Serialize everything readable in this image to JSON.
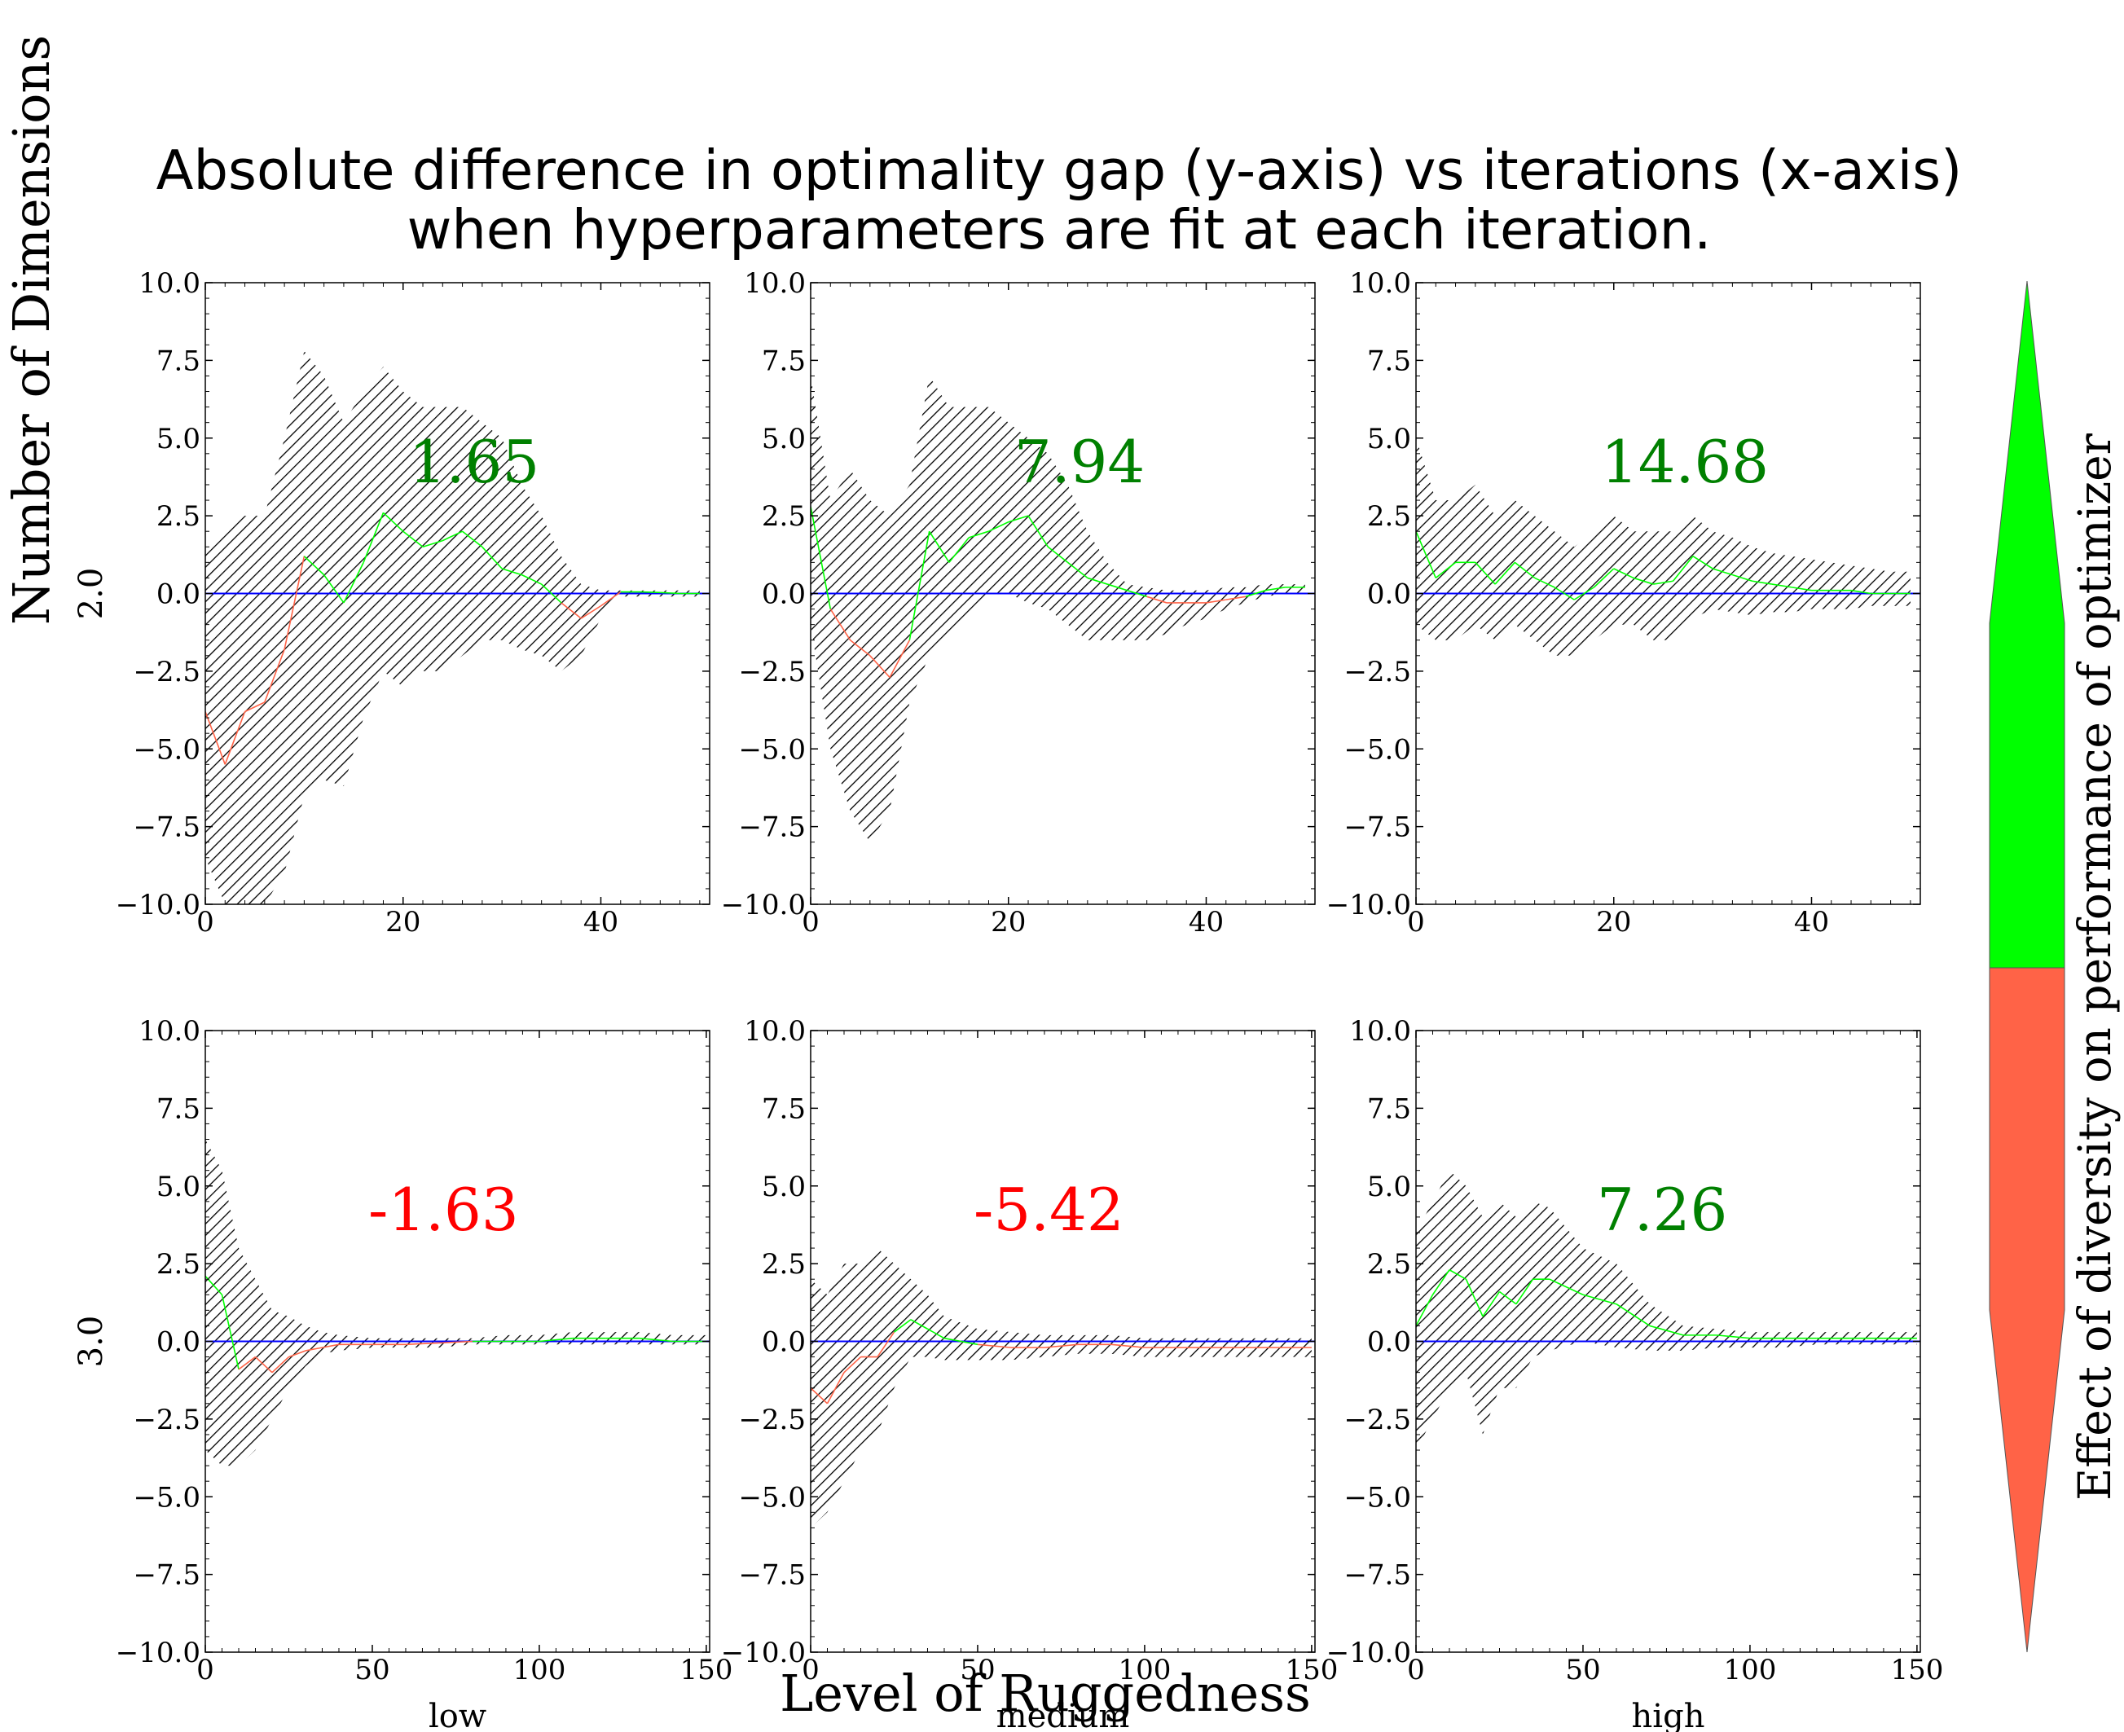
{
  "title_lines": [
    "Absolute difference in optimality gap (y-axis) vs iterations (x-axis)",
    "when hyperparameters are fit at each iteration."
  ],
  "ylabel": "Number of Dimensions",
  "xlabel": "Level of Ruggedness",
  "colorbar_label": "Effect of diversity on performance of optimizer",
  "colors": {
    "positive": "#00ff00",
    "negative": "#ff6347",
    "annotation_positive": "#008000",
    "annotation_negative": "#ff0000",
    "zero_line": "#0000ff",
    "hatch": "#000000"
  },
  "chart_data": [
    {
      "type": "line",
      "row": 0,
      "col": 0,
      "row_label": "2.0",
      "col_label": "",
      "annotation": "1.65",
      "annotation_sign": "positive",
      "xlim": [
        0,
        51
      ],
      "ylim": [
        -10,
        10
      ],
      "xticks": [
        "0",
        "20",
        "40"
      ],
      "yticks": [
        "10.0",
        "7.5",
        "5.0",
        "2.5",
        "0.0",
        "−2.5",
        "−5.0",
        "−7.5",
        "−10.0"
      ],
      "mean": {
        "x": [
          0,
          2,
          4,
          6,
          8,
          10,
          12,
          14,
          16,
          18,
          20,
          22,
          24,
          26,
          28,
          30,
          32,
          34,
          36,
          38,
          40,
          42,
          44,
          46,
          48,
          50
        ],
        "y": [
          -3.8,
          -5.5,
          -3.8,
          -3.5,
          -1.8,
          1.2,
          0.6,
          -0.3,
          1.0,
          2.6,
          2.0,
          1.5,
          1.7,
          2.0,
          1.5,
          0.8,
          0.6,
          0.3,
          -0.3,
          -0.8,
          -0.4,
          0.05,
          0.05,
          0.03,
          0.0,
          0.0
        ]
      },
      "upper": [
        1.5,
        2.0,
        2.5,
        2.5,
        5.0,
        7.8,
        7.0,
        5.5,
        6.5,
        7.3,
        6.5,
        6.0,
        6.0,
        6.0,
        5.5,
        5.0,
        3.5,
        2.5,
        1.2,
        0.3,
        0.1,
        0.1,
        0.1,
        0.1,
        0.1,
        0.1
      ],
      "lower": [
        -8.5,
        -10,
        -10,
        -10,
        -9.0,
        -6.5,
        -6.0,
        -6.2,
        -4.0,
        -2.5,
        -3.0,
        -2.5,
        -2.5,
        -2.0,
        -1.5,
        -1.5,
        -1.8,
        -2.0,
        -2.5,
        -2.0,
        -0.8,
        -0.1,
        -0.1,
        -0.1,
        -0.1,
        -0.1
      ]
    },
    {
      "type": "line",
      "row": 0,
      "col": 1,
      "row_label": "",
      "col_label": "",
      "annotation": "7.94",
      "annotation_sign": "positive",
      "xlim": [
        0,
        51
      ],
      "ylim": [
        -10,
        10
      ],
      "xticks": [
        "0",
        "20",
        "40"
      ],
      "yticks": [
        "10.0",
        "7.5",
        "5.0",
        "2.5",
        "0.0",
        "−2.5",
        "−5.0",
        "−7.5",
        "−10.0"
      ],
      "mean": {
        "x": [
          0,
          2,
          4,
          6,
          8,
          10,
          12,
          14,
          16,
          18,
          20,
          22,
          24,
          26,
          28,
          30,
          32,
          34,
          36,
          38,
          40,
          42,
          44,
          46,
          48,
          50
        ],
        "y": [
          2.8,
          -0.5,
          -1.5,
          -2.0,
          -2.7,
          -1.5,
          2.0,
          1.0,
          1.8,
          2.0,
          2.3,
          2.5,
          1.5,
          1.0,
          0.5,
          0.3,
          0.1,
          -0.1,
          -0.3,
          -0.3,
          -0.3,
          -0.2,
          -0.1,
          0.1,
          0.2,
          0.2
        ]
      },
      "upper": [
        7.0,
        3.0,
        4.0,
        3.0,
        2.5,
        3.5,
        7.0,
        6.0,
        6.0,
        6.0,
        5.5,
        5.0,
        4.5,
        3.5,
        2.0,
        1.0,
        0.3,
        0.2,
        0.1,
        0.1,
        0.1,
        0.2,
        0.2,
        0.3,
        0.3,
        0.3
      ],
      "lower": [
        -1.0,
        -5.0,
        -7.0,
        -8.0,
        -7.0,
        -3.5,
        -2.0,
        -1.5,
        -0.8,
        0.0,
        0.0,
        -0.3,
        -0.5,
        -1.0,
        -1.5,
        -1.5,
        -1.5,
        -1.5,
        -1.3,
        -1.0,
        -0.8,
        -0.5,
        -0.3,
        -0.1,
        0.0,
        0.0
      ]
    },
    {
      "type": "line",
      "row": 0,
      "col": 2,
      "row_label": "",
      "col_label": "",
      "annotation": "14.68",
      "annotation_sign": "positive",
      "xlim": [
        0,
        51
      ],
      "ylim": [
        -10,
        10
      ],
      "xticks": [
        "0",
        "20",
        "40"
      ],
      "yticks": [
        "10.0",
        "7.5",
        "5.0",
        "2.5",
        "0.0",
        "−2.5",
        "−5.0",
        "−7.5",
        "−10.0"
      ],
      "mean": {
        "x": [
          0,
          2,
          4,
          6,
          8,
          10,
          12,
          14,
          16,
          18,
          20,
          22,
          24,
          26,
          28,
          30,
          32,
          34,
          36,
          38,
          40,
          42,
          44,
          46,
          48,
          50
        ],
        "y": [
          2.0,
          0.5,
          1.0,
          1.0,
          0.3,
          1.0,
          0.5,
          0.2,
          -0.2,
          0.2,
          0.8,
          0.5,
          0.3,
          0.4,
          1.2,
          0.8,
          0.6,
          0.4,
          0.3,
          0.2,
          0.1,
          0.1,
          0.1,
          0.0,
          0.0,
          0.0
        ]
      },
      "upper": [
        5.0,
        3.0,
        3.0,
        3.5,
        2.5,
        3.0,
        2.5,
        2.0,
        1.5,
        2.0,
        2.5,
        2.0,
        2.0,
        2.0,
        2.5,
        2.0,
        1.8,
        1.5,
        1.3,
        1.2,
        1.1,
        1.0,
        0.9,
        0.8,
        0.7,
        0.7
      ],
      "lower": [
        -1.0,
        -1.5,
        -1.5,
        -1.0,
        -1.5,
        -1.0,
        -1.5,
        -2.0,
        -2.0,
        -1.5,
        -1.0,
        -1.0,
        -1.5,
        -1.5,
        -0.8,
        -0.5,
        -0.6,
        -0.7,
        -0.6,
        -0.6,
        -0.5,
        -0.5,
        -0.5,
        -0.4,
        -0.4,
        -0.4
      ]
    },
    {
      "type": "line",
      "row": 1,
      "col": 0,
      "row_label": "3.0",
      "col_label": "low",
      "annotation": "-1.63",
      "annotation_sign": "negative",
      "xlim": [
        0,
        151
      ],
      "ylim": [
        -10,
        10
      ],
      "xticks": [
        "0",
        "50",
        "100",
        "150"
      ],
      "yticks": [
        "10.0",
        "7.5",
        "5.0",
        "2.5",
        "0.0",
        "−2.5",
        "−5.0",
        "−7.5",
        "−10.0"
      ],
      "mean": {
        "x": [
          0,
          5,
          10,
          15,
          20,
          25,
          30,
          35,
          40,
          50,
          60,
          70,
          80,
          90,
          100,
          110,
          120,
          130,
          140,
          150
        ],
        "y": [
          2.1,
          1.5,
          -0.9,
          -0.5,
          -1.0,
          -0.5,
          -0.3,
          -0.2,
          -0.1,
          -0.1,
          -0.1,
          -0.05,
          0.0,
          0.0,
          0.0,
          0.1,
          0.1,
          0.1,
          0.0,
          0.0
        ]
      },
      "upper": [
        6.5,
        5.5,
        3.0,
        2.0,
        1.0,
        0.8,
        0.5,
        0.3,
        0.2,
        0.1,
        0.1,
        0.1,
        0.1,
        0.2,
        0.2,
        0.3,
        0.3,
        0.3,
        0.2,
        0.2
      ],
      "lower": [
        -3.5,
        -4.0,
        -4.0,
        -3.5,
        -2.5,
        -1.5,
        -0.8,
        -0.4,
        -0.3,
        -0.2,
        -0.2,
        -0.2,
        -0.1,
        -0.1,
        -0.1,
        -0.1,
        -0.1,
        -0.1,
        -0.1,
        -0.1
      ]
    },
    {
      "type": "line",
      "row": 1,
      "col": 1,
      "row_label": "",
      "col_label": "medium",
      "annotation": "-5.42",
      "annotation_sign": "negative",
      "xlim": [
        0,
        151
      ],
      "ylim": [
        -10,
        10
      ],
      "xticks": [
        "0",
        "50",
        "100",
        "150"
      ],
      "yticks": [
        "10.0",
        "7.5",
        "5.0",
        "2.5",
        "0.0",
        "−2.5",
        "−5.0",
        "−7.5",
        "−10.0"
      ],
      "mean": {
        "x": [
          0,
          5,
          10,
          15,
          20,
          25,
          30,
          35,
          40,
          50,
          60,
          70,
          80,
          90,
          100,
          110,
          120,
          130,
          140,
          150
        ],
        "y": [
          -1.5,
          -2.0,
          -1.0,
          -0.5,
          -0.5,
          0.3,
          0.7,
          0.4,
          0.1,
          -0.1,
          -0.2,
          -0.2,
          -0.1,
          -0.1,
          -0.2,
          -0.2,
          -0.2,
          -0.2,
          -0.2,
          -0.2
        ]
      },
      "upper": [
        2.0,
        1.5,
        2.5,
        2.5,
        3.0,
        2.5,
        2.0,
        1.5,
        0.8,
        0.4,
        0.3,
        0.2,
        0.2,
        0.2,
        0.1,
        0.1,
        0.1,
        0.1,
        0.1,
        0.1
      ],
      "lower": [
        -6.0,
        -5.5,
        -4.5,
        -3.5,
        -3.0,
        -1.5,
        -0.5,
        -0.5,
        -0.6,
        -0.6,
        -0.6,
        -0.5,
        -0.4,
        -0.4,
        -0.5,
        -0.5,
        -0.5,
        -0.5,
        -0.5,
        -0.5
      ]
    },
    {
      "type": "line",
      "row": 1,
      "col": 2,
      "row_label": "",
      "col_label": "high",
      "annotation": "7.26",
      "annotation_sign": "positive",
      "xlim": [
        0,
        151
      ],
      "ylim": [
        -10,
        10
      ],
      "xticks": [
        "0",
        "50",
        "100",
        "150"
      ],
      "yticks": [
        "10.0",
        "7.5",
        "5.0",
        "2.5",
        "0.0",
        "−2.5",
        "−5.0",
        "−7.5",
        "−10.0"
      ],
      "mean": {
        "x": [
          0,
          5,
          10,
          15,
          20,
          25,
          30,
          35,
          40,
          50,
          60,
          70,
          80,
          90,
          100,
          110,
          120,
          130,
          140,
          150
        ],
        "y": [
          0.5,
          1.5,
          2.3,
          2.0,
          0.8,
          1.6,
          1.2,
          2.0,
          2.0,
          1.5,
          1.2,
          0.5,
          0.2,
          0.2,
          0.1,
          0.1,
          0.1,
          0.1,
          0.1,
          0.1
        ]
      },
      "upper": [
        3.5,
        4.5,
        5.5,
        5.0,
        4.0,
        4.5,
        4.0,
        4.5,
        4.3,
        3.0,
        2.5,
        1.2,
        0.5,
        0.4,
        0.3,
        0.3,
        0.3,
        0.3,
        0.3,
        0.3
      ],
      "lower": [
        -3.5,
        -2.5,
        -1.5,
        -1.0,
        -3.0,
        -1.5,
        -1.5,
        -0.5,
        -0.3,
        0.0,
        -0.2,
        -0.3,
        -0.3,
        -0.2,
        -0.2,
        -0.2,
        -0.1,
        -0.1,
        -0.1,
        -0.1
      ]
    }
  ]
}
